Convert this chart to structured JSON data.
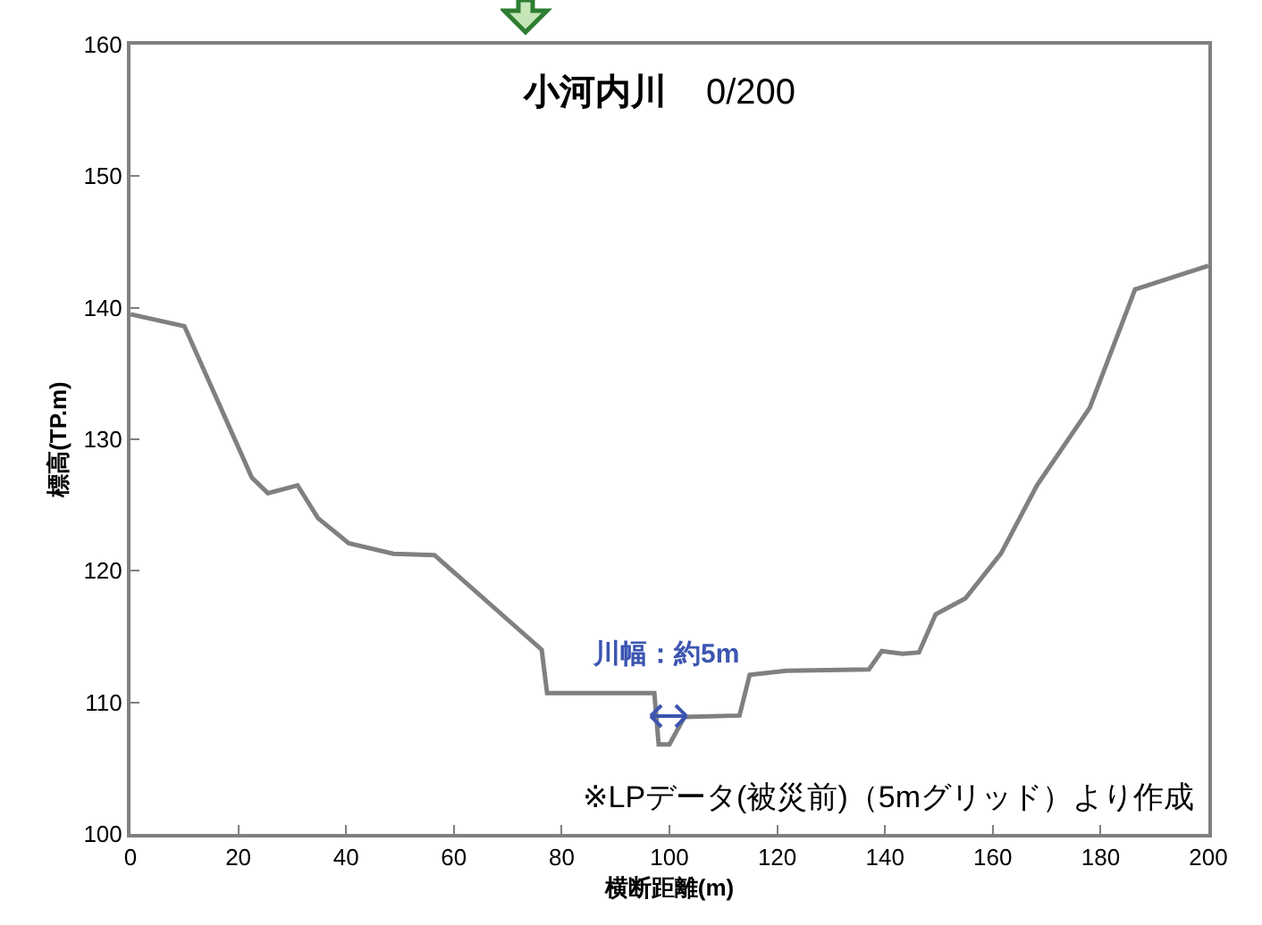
{
  "chart_data": {
    "type": "line",
    "title": "小河内川",
    "subtitle": "0/200",
    "xlabel": "横断距離(m)",
    "ylabel": "標高(TP.m)",
    "x": [
      0,
      10,
      22.5,
      25.5,
      31,
      34.8,
      40.5,
      48.8,
      56.4,
      76.3,
      77.3,
      97.2,
      98,
      100,
      102.8,
      113,
      114.9,
      121.7,
      137,
      139.4,
      143.3,
      146.3,
      149.4,
      154.9,
      161.5,
      168.2,
      178,
      186.4,
      200
    ],
    "series": [
      {
        "color": "#808080",
        "values": [
          139.5,
          138.6,
          127.1,
          125.9,
          126.5,
          124,
          122.1,
          121.3,
          121.2,
          114,
          110.7,
          110.7,
          106.8,
          106.8,
          108.9,
          109,
          112.1,
          112.4,
          112.5,
          113.9,
          113.7,
          113.8,
          116.7,
          117.9,
          121.3,
          126.5,
          132.4,
          141.4,
          143.2
        ]
      }
    ],
    "xlim": [
      0,
      200
    ],
    "xticks": [
      0,
      20,
      40,
      60,
      80,
      100,
      120,
      140,
      160,
      180,
      200
    ],
    "ylim": [
      100,
      160
    ],
    "yticks": [
      100,
      110,
      120,
      130,
      140,
      150,
      160
    ],
    "grid": false,
    "marker": "none",
    "line_style": "solid",
    "annotations": [
      "川幅：約5m",
      "※LPデータ(被災前)（5mグリッド）より作成"
    ]
  }
}
